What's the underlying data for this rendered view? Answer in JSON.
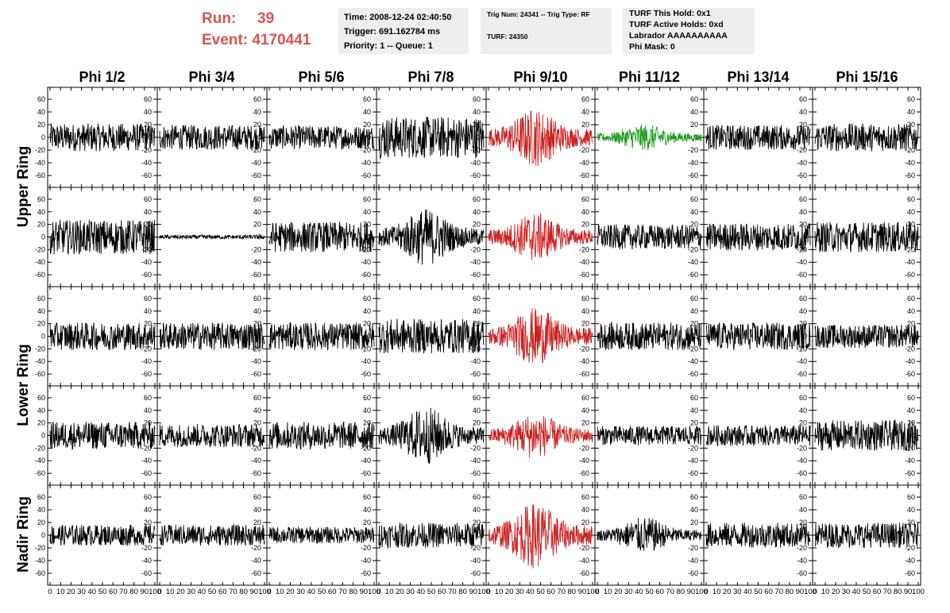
{
  "header": {
    "run_label": "Run:",
    "run_value": "39",
    "event_label": "Event:",
    "event_value": "4170441",
    "time": "Time: 2008-12-24 02:40:50",
    "trigger": "Trigger: 691.162784 ms",
    "priority": "Priority: 1 -- Queue: 1",
    "trig_num": "Trig Num: 24341 -- Trig Type: RF",
    "turf": "TURF: 24350",
    "turf_this_hold": "TURF This Hold: 0x1",
    "turf_active_holds": "TURF Active Holds: 0xd",
    "labrador": "Labrador AAAAAAAAAA",
    "phi_mask": "Phi Mask: 0"
  },
  "columns": [
    "Phi 1/2",
    "Phi 3/4",
    "Phi 5/6",
    "Phi 7/8",
    "Phi 9/10",
    "Phi 11/12",
    "Phi 13/14",
    "Phi 15/16"
  ],
  "rings": [
    {
      "label": "Upper Ring",
      "rows": [
        0,
        1
      ]
    },
    {
      "label": "Lower Ring",
      "rows": [
        2,
        3
      ]
    },
    {
      "label": "Nadir Ring",
      "rows": [
        4
      ]
    }
  ],
  "colors": {
    "red": "#cc2222",
    "green": "#1e9a1e",
    "black": "#000000",
    "title": "#d9534f"
  },
  "chart_data": {
    "type": "line",
    "layout": "grid of 5 rows x 8 columns of waveform panels",
    "ylim": [
      -75,
      75
    ],
    "yticks": [
      -60,
      -40,
      -20,
      0,
      20,
      40,
      60
    ],
    "xlim": [
      0,
      100
    ],
    "xticks": [
      0,
      10,
      20,
      30,
      40,
      50,
      60,
      70,
      80,
      90,
      100
    ],
    "xtick_labels_bottom_row": "0 10 20 30 40 50 60 70 80 90 100",
    "samples_per_panel": 260,
    "panel_colors": [
      [
        "black",
        "black",
        "black",
        "black",
        "red",
        "green",
        "black",
        "black"
      ],
      [
        "black",
        "black",
        "black",
        "black",
        "red",
        "black",
        "black",
        "black"
      ],
      [
        "black",
        "black",
        "black",
        "black",
        "red",
        "black",
        "black",
        "black"
      ],
      [
        "black",
        "black",
        "black",
        "black",
        "red",
        "black",
        "black",
        "black"
      ],
      [
        "black",
        "black",
        "black",
        "black",
        "red",
        "black",
        "black",
        "black"
      ]
    ],
    "panel_amplitudes": [
      [
        20,
        18,
        17,
        30,
        35,
        16,
        18,
        20
      ],
      [
        25,
        3,
        22,
        35,
        30,
        18,
        20,
        22
      ],
      [
        20,
        20,
        20,
        25,
        35,
        20,
        20,
        17
      ],
      [
        20,
        17,
        20,
        35,
        28,
        14,
        15,
        22
      ],
      [
        15,
        15,
        12,
        18,
        40,
        22,
        18,
        18
      ]
    ],
    "panel_envelope": [
      [
        "flat",
        "flat",
        "flat",
        "flat",
        "burst",
        "burst",
        "flat",
        "flat"
      ],
      [
        "flat",
        "flat",
        "flat",
        "burst",
        "burst",
        "flat",
        "flat",
        "flat"
      ],
      [
        "flat",
        "flat",
        "flat",
        "flat",
        "burst",
        "flat",
        "flat",
        "flat"
      ],
      [
        "flat",
        "flat",
        "flat",
        "burst",
        "burst",
        "flat",
        "flat",
        "flat"
      ],
      [
        "flat",
        "flat",
        "flat",
        "flat",
        "burst",
        "burst",
        "flat",
        "flat"
      ]
    ]
  }
}
